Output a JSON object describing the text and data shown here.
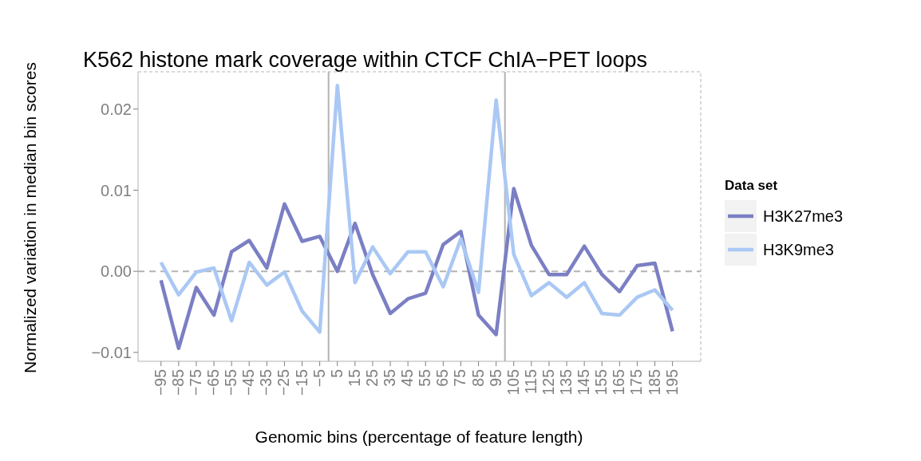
{
  "chart_data": {
    "type": "line",
    "title": "K562 histone mark coverage within CTCF ChIA−PET loops",
    "xlabel": "Genomic bins (percentage of feature length)",
    "ylabel": "Normalized variation in median bin scores",
    "legend_title": "Data set",
    "x": [
      -95,
      -85,
      -75,
      -65,
      -55,
      -45,
      -35,
      -25,
      -15,
      -5,
      5,
      15,
      25,
      35,
      45,
      55,
      65,
      75,
      85,
      95,
      105,
      115,
      125,
      135,
      145,
      155,
      165,
      175,
      185,
      195
    ],
    "series": [
      {
        "name": "H3K27me3",
        "color": "#7b7fc4",
        "values": [
          -0.0011,
          -0.0095,
          -0.002,
          -0.0054,
          0.0024,
          0.0038,
          0.0004,
          0.0083,
          0.0037,
          0.0043,
          0.0,
          0.0059,
          -0.0004,
          -0.0052,
          -0.0034,
          -0.0027,
          0.0033,
          0.0049,
          -0.0054,
          -0.0078,
          0.0102,
          0.0032,
          -0.0004,
          -0.0004,
          0.0031,
          -0.0004,
          -0.0025,
          0.0007,
          0.001,
          -0.0074
        ]
      },
      {
        "name": "H3K9me3",
        "color": "#aac8f4",
        "values": [
          0.0011,
          -0.0029,
          -0.0001,
          0.0004,
          -0.0061,
          0.0011,
          -0.0017,
          -0.0001,
          -0.0049,
          -0.0075,
          0.0229,
          -0.0014,
          0.003,
          -0.0003,
          0.0024,
          0.0024,
          -0.0019,
          0.004,
          -0.0026,
          0.0211,
          0.0021,
          -0.003,
          -0.0014,
          -0.0032,
          -0.0014,
          -0.0052,
          -0.0054,
          -0.0032,
          -0.0023,
          -0.0048
        ]
      }
    ],
    "xlim": [
      -108,
      211
    ],
    "xticks": [
      {
        "value": -95,
        "label": "−95"
      },
      {
        "value": -85,
        "label": "−85"
      },
      {
        "value": -75,
        "label": "−75"
      },
      {
        "value": -65,
        "label": "−65"
      },
      {
        "value": -55,
        "label": "−55"
      },
      {
        "value": -45,
        "label": "−45"
      },
      {
        "value": -35,
        "label": "−35"
      },
      {
        "value": -25,
        "label": "−25"
      },
      {
        "value": -15,
        "label": "−15"
      },
      {
        "value": -5,
        "label": "−5"
      },
      5,
      15,
      25,
      35,
      45,
      55,
      65,
      75,
      85,
      95,
      105,
      115,
      125,
      135,
      145,
      155,
      165,
      175,
      185,
      195
    ],
    "ylim": [
      -0.0111,
      0.0246
    ],
    "yticks": [
      {
        "value": -0.01,
        "label": "−0.01"
      },
      {
        "value": 0,
        "label": "0.00"
      },
      0.01,
      0.02
    ],
    "ref_lines": [
      {
        "axis": "x",
        "value": 0,
        "color": "#b3b3b3",
        "line_style": "solid"
      },
      {
        "axis": "x",
        "value": 100,
        "color": "#b3b3b3",
        "line_style": "solid"
      },
      {
        "axis": "y",
        "value": 0,
        "color": "#b3b3b3",
        "line_style": "dashed"
      }
    ],
    "grid": false,
    "legend": "right",
    "marker": "none",
    "line_style": "solid"
  }
}
